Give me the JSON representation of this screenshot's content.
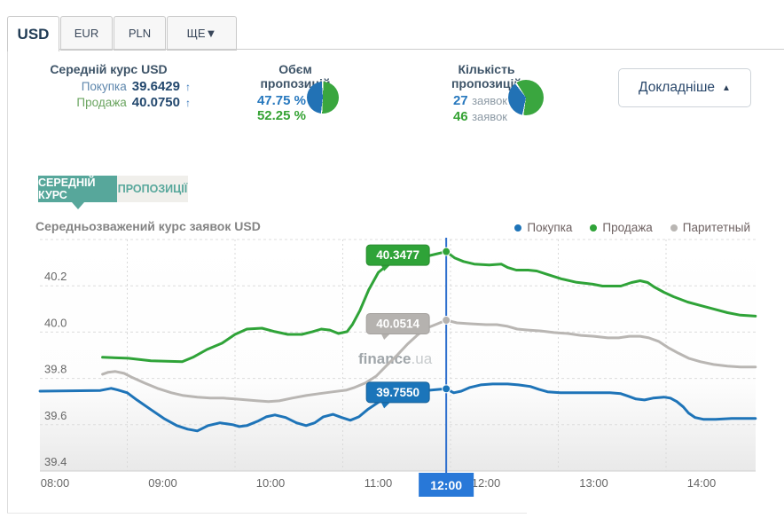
{
  "tabs": [
    {
      "label": "USD",
      "active": true
    },
    {
      "label": "EUR",
      "active": false
    },
    {
      "label": "PLN",
      "active": false
    },
    {
      "label": "ЩЕ▼",
      "active": false
    }
  ],
  "summary": {
    "avg_rate": {
      "title": "Середній курс USD",
      "buy_label": "Покупка",
      "buy_value": "39.6429",
      "buy_arrow": "↑",
      "sell_label": "Продажа",
      "sell_value": "40.0750",
      "sell_arrow": "↑"
    },
    "volume": {
      "title": "Обєм пропозицій",
      "buy_pct": "47.75 %",
      "sell_pct": "52.25 %",
      "pie": {
        "buy": 47.75,
        "sell": 52.25
      }
    },
    "count": {
      "title": "Кількість пропозицій",
      "buy_count": "27",
      "sell_count": "46",
      "unit": "заявок",
      "pie": {
        "buy": 27,
        "sell": 46
      }
    },
    "details_label": "Докладніше",
    "details_arrow": "▲"
  },
  "subtabs": [
    {
      "label": "СЕРЕДНІЙ КУРС",
      "active": true
    },
    {
      "label": "ПРОПОЗИЦІЇ",
      "active": false
    }
  ],
  "colors": {
    "buy": "#1e74b8",
    "sell": "#2fa338",
    "parity": "#b9b6b3",
    "cursor": "#2e6fce",
    "cursor_box": "#2878d8"
  },
  "chart_data": {
    "type": "line",
    "title": "Середньозважений курс заявок USD",
    "watermark": {
      "part1": "finance",
      "part2": ".ua"
    },
    "xlabel": "",
    "ylabel": "",
    "ylim": [
      39.4,
      40.4
    ],
    "y_ticks": [
      "40.2",
      "40.0",
      "39.8",
      "39.6",
      "39.4"
    ],
    "x_ticks": [
      "08:00",
      "09:00",
      "10:00",
      "11:00",
      "12:00",
      "13:00",
      "14:00"
    ],
    "grid": true,
    "legend_position": "top-right",
    "legend": [
      {
        "name": "Покупка",
        "color": "#1e74b8"
      },
      {
        "name": "Продажа",
        "color": "#2fa338"
      },
      {
        "name": "Паритетный",
        "color": "#b9b6b3"
      }
    ],
    "cursor": {
      "time_label": "12:00",
      "t": 11.96,
      "values": [
        {
          "series": "Продажа",
          "label": "40.3477",
          "value": 40.3477,
          "color": "#2fa338",
          "edge": "#2a8c30"
        },
        {
          "series": "Паритетный",
          "label": "40.0514",
          "value": 40.0514,
          "color": "#b5b2af",
          "edge": "#a5a29f"
        },
        {
          "series": "Покупка",
          "label": "39.7550",
          "value": 39.755,
          "color": "#1b75ba",
          "edge": "#176299"
        }
      ]
    },
    "series": [
      {
        "name": "Покупка",
        "color": "#1e74b8",
        "points": [
          [
            8.19,
            39.745
          ],
          [
            8.75,
            39.748
          ],
          [
            8.85,
            39.757
          ],
          [
            8.91,
            39.75
          ],
          [
            9.0,
            39.738
          ],
          [
            9.09,
            39.707
          ],
          [
            9.22,
            39.665
          ],
          [
            9.34,
            39.627
          ],
          [
            9.46,
            39.596
          ],
          [
            9.56,
            39.581
          ],
          [
            9.65,
            39.573
          ],
          [
            9.75,
            39.596
          ],
          [
            9.86,
            39.608
          ],
          [
            9.98,
            39.6
          ],
          [
            10.04,
            39.592
          ],
          [
            10.11,
            39.596
          ],
          [
            10.21,
            39.615
          ],
          [
            10.29,
            39.634
          ],
          [
            10.37,
            39.642
          ],
          [
            10.47,
            39.631
          ],
          [
            10.57,
            39.608
          ],
          [
            10.66,
            39.596
          ],
          [
            10.74,
            39.608
          ],
          [
            10.82,
            39.634
          ],
          [
            10.91,
            39.645
          ],
          [
            10.99,
            39.631
          ],
          [
            11.07,
            39.619
          ],
          [
            11.15,
            39.634
          ],
          [
            11.23,
            39.665
          ],
          [
            11.34,
            39.7
          ],
          [
            11.44,
            39.723
          ],
          [
            11.56,
            39.738
          ],
          [
            11.69,
            39.745
          ],
          [
            11.81,
            39.749
          ],
          [
            11.96,
            39.755
          ],
          [
            12.03,
            39.738
          ],
          [
            12.1,
            39.745
          ],
          [
            12.18,
            39.761
          ],
          [
            12.28,
            39.772
          ],
          [
            12.39,
            39.776
          ],
          [
            12.53,
            39.776
          ],
          [
            12.63,
            39.772
          ],
          [
            12.74,
            39.765
          ],
          [
            12.82,
            39.753
          ],
          [
            12.9,
            39.742
          ],
          [
            13.02,
            39.738
          ],
          [
            13.33,
            39.738
          ],
          [
            13.48,
            39.738
          ],
          [
            13.58,
            39.734
          ],
          [
            13.65,
            39.723
          ],
          [
            13.72,
            39.711
          ],
          [
            13.8,
            39.707
          ],
          [
            13.88,
            39.715
          ],
          [
            13.98,
            39.719
          ],
          [
            14.04,
            39.715
          ],
          [
            14.1,
            39.7
          ],
          [
            14.16,
            39.677
          ],
          [
            14.21,
            39.65
          ],
          [
            14.27,
            39.631
          ],
          [
            14.35,
            39.623
          ],
          [
            14.46,
            39.623
          ],
          [
            14.61,
            39.627
          ],
          [
            14.83,
            39.627
          ]
        ]
      },
      {
        "name": "Продажа",
        "color": "#2fa338",
        "points": [
          [
            8.77,
            39.891
          ],
          [
            9.01,
            39.887
          ],
          [
            9.22,
            39.876
          ],
          [
            9.51,
            39.872
          ],
          [
            9.61,
            39.891
          ],
          [
            9.74,
            39.925
          ],
          [
            9.88,
            39.952
          ],
          [
            10.0,
            39.99
          ],
          [
            10.11,
            40.013
          ],
          [
            10.25,
            40.017
          ],
          [
            10.37,
            40.002
          ],
          [
            10.49,
            39.99
          ],
          [
            10.62,
            39.99
          ],
          [
            10.72,
            40.002
          ],
          [
            10.8,
            40.013
          ],
          [
            10.88,
            40.009
          ],
          [
            10.96,
            39.994
          ],
          [
            11.04,
            40.002
          ],
          [
            11.09,
            40.033
          ],
          [
            11.16,
            40.094
          ],
          [
            11.24,
            40.182
          ],
          [
            11.33,
            40.258
          ],
          [
            11.44,
            40.3
          ],
          [
            11.56,
            40.319
          ],
          [
            11.69,
            40.323
          ],
          [
            11.81,
            40.331
          ],
          [
            11.96,
            40.3477
          ],
          [
            12.04,
            40.32
          ],
          [
            12.12,
            40.305
          ],
          [
            12.22,
            40.294
          ],
          [
            12.36,
            40.29
          ],
          [
            12.47,
            40.294
          ],
          [
            12.53,
            40.279
          ],
          [
            12.61,
            40.268
          ],
          [
            12.72,
            40.268
          ],
          [
            12.8,
            40.264
          ],
          [
            12.9,
            40.249
          ],
          [
            13.03,
            40.23
          ],
          [
            13.17,
            40.215
          ],
          [
            13.32,
            40.207
          ],
          [
            13.41,
            40.199
          ],
          [
            13.58,
            40.199
          ],
          [
            13.68,
            40.214
          ],
          [
            13.76,
            40.222
          ],
          [
            13.83,
            40.214
          ],
          [
            13.89,
            40.195
          ],
          [
            13.98,
            40.172
          ],
          [
            14.07,
            40.153
          ],
          [
            14.2,
            40.13
          ],
          [
            14.32,
            40.115
          ],
          [
            14.44,
            40.1
          ],
          [
            14.57,
            40.084
          ],
          [
            14.69,
            40.073
          ],
          [
            14.83,
            40.069
          ]
        ]
      },
      {
        "name": "Паритетный",
        "color": "#b9b6b3",
        "points": [
          [
            8.77,
            39.818
          ],
          [
            8.82,
            39.826
          ],
          [
            8.89,
            39.83
          ],
          [
            8.97,
            39.822
          ],
          [
            9.05,
            39.803
          ],
          [
            9.16,
            39.78
          ],
          [
            9.28,
            39.757
          ],
          [
            9.41,
            39.738
          ],
          [
            9.52,
            39.726
          ],
          [
            9.65,
            39.719
          ],
          [
            9.77,
            39.715
          ],
          [
            9.89,
            39.715
          ],
          [
            10.0,
            39.711
          ],
          [
            10.11,
            39.707
          ],
          [
            10.21,
            39.703
          ],
          [
            10.31,
            39.7
          ],
          [
            10.41,
            39.703
          ],
          [
            10.53,
            39.715
          ],
          [
            10.66,
            39.726
          ],
          [
            10.78,
            39.734
          ],
          [
            10.91,
            39.742
          ],
          [
            11.03,
            39.749
          ],
          [
            11.11,
            39.761
          ],
          [
            11.21,
            39.78
          ],
          [
            11.31,
            39.81
          ],
          [
            11.41,
            39.857
          ],
          [
            11.51,
            39.903
          ],
          [
            11.6,
            39.948
          ],
          [
            11.7,
            39.99
          ],
          [
            11.8,
            40.021
          ],
          [
            11.88,
            40.036
          ],
          [
            11.96,
            40.0514
          ],
          [
            12.06,
            40.04
          ],
          [
            12.18,
            40.036
          ],
          [
            12.33,
            40.032
          ],
          [
            12.43,
            40.032
          ],
          [
            12.53,
            40.025
          ],
          [
            12.62,
            40.013
          ],
          [
            12.72,
            40.009
          ],
          [
            12.84,
            40.005
          ],
          [
            12.96,
            39.998
          ],
          [
            13.09,
            39.994
          ],
          [
            13.21,
            39.986
          ],
          [
            13.33,
            39.982
          ],
          [
            13.46,
            39.975
          ],
          [
            13.56,
            39.975
          ],
          [
            13.66,
            39.982
          ],
          [
            13.76,
            39.982
          ],
          [
            13.84,
            39.975
          ],
          [
            13.93,
            39.96
          ],
          [
            14.02,
            39.933
          ],
          [
            14.11,
            39.91
          ],
          [
            14.21,
            39.887
          ],
          [
            14.32,
            39.872
          ],
          [
            14.44,
            39.86
          ],
          [
            14.57,
            39.853
          ],
          [
            14.69,
            39.849
          ],
          [
            14.83,
            39.849
          ]
        ]
      }
    ]
  }
}
